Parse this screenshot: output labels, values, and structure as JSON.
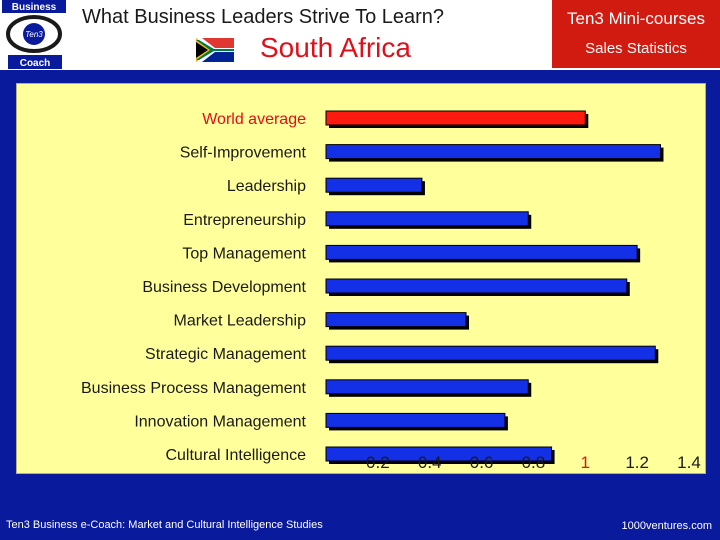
{
  "header": {
    "title": "What Business Leaders Strive To Learn?",
    "country": "South Africa",
    "course_line1": "Ten3 Mini-courses",
    "course_line2": "Sales Statistics",
    "logo_top": "Business",
    "logo_mid": "Ten3",
    "logo_bottom": "Coach"
  },
  "footer": {
    "left": "Ten3 Business e-Coach: Market and Cultural Intelligence Studies",
    "right": "1000ventures.com"
  },
  "colors": {
    "background": "#0a1a9c",
    "plot_background": "#ffff9c",
    "bar": "#1430e6",
    "highlight_bar": "#ff1a10",
    "highlight_text": "#e0101a",
    "accent_red": "#d11a10"
  },
  "chart_data": {
    "type": "bar",
    "orientation": "horizontal",
    "categories": [
      "World average",
      "Self-Improvement",
      "Leadership",
      "Entrepreneurship",
      "Top Management",
      "Business Development",
      "Market Leadership",
      "Strategic Management",
      "Business Process Management",
      "Innovation Management",
      "Cultural Intelligence"
    ],
    "values": [
      1.0,
      1.29,
      0.37,
      0.78,
      1.2,
      1.16,
      0.54,
      1.27,
      0.78,
      0.69,
      0.87
    ],
    "highlight_index": 0,
    "xlim": [
      0,
      1.4
    ],
    "xticks": [
      "0.2",
      "0.4",
      "0.6",
      "0.8",
      "1",
      "1.2",
      "1.4"
    ],
    "highlight_tick": "1",
    "title": "",
    "xlabel": "",
    "ylabel": "",
    "grid": false,
    "legend": "none"
  }
}
